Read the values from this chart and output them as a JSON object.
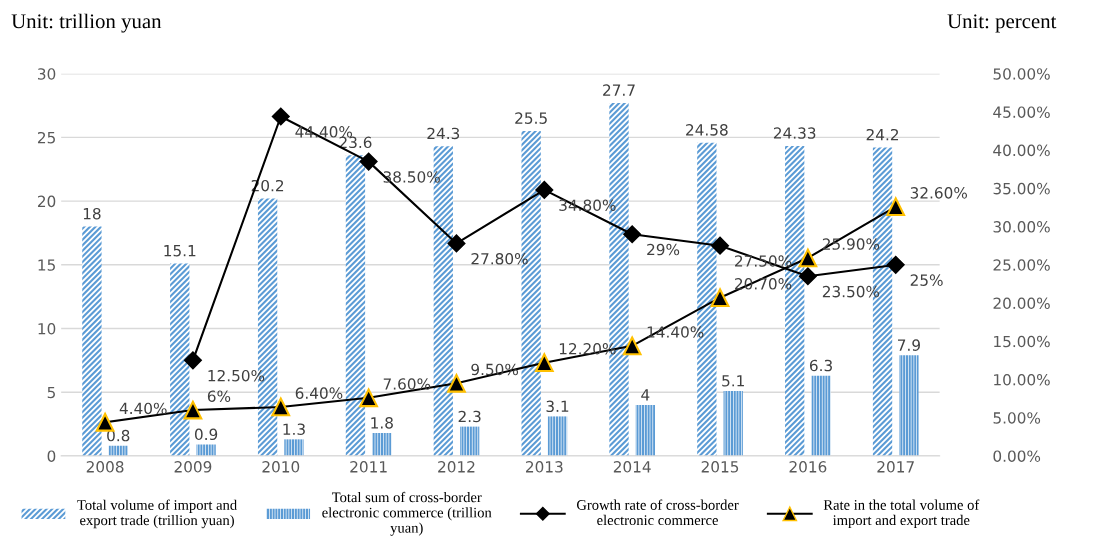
{
  "chart_data": {
    "type": "bar",
    "categories": [
      "2008",
      "2009",
      "2010",
      "2011",
      "2012",
      "2013",
      "2014",
      "2015",
      "2016",
      "2017"
    ],
    "series": [
      {
        "name": "Total volume of import and export trade (trillion yuan)",
        "color": "#5b9bd5",
        "values": [
          18,
          15.1,
          20.2,
          23.6,
          24.3,
          25.5,
          27.7,
          24.58,
          24.33,
          24.2
        ],
        "value_labels": [
          "18",
          "15.1",
          "20.2",
          "23.6",
          "24.3",
          "25.5",
          "27.7",
          "24.58",
          "24.33",
          "24.2"
        ]
      },
      {
        "name": "Total sum of cross-border electronic commerce (trillion yuan)",
        "color": "#5b9bd5",
        "values": [
          0.8,
          0.9,
          1.3,
          1.8,
          2.3,
          3.1,
          4,
          5.1,
          6.3,
          7.9
        ],
        "value_labels": [
          "0.8",
          "0.9",
          "1.3",
          "1.8",
          "2.3",
          "3.1",
          "4",
          "5.1",
          "6.3",
          "7.9"
        ]
      },
      {
        "name": "Growth rate of cross-border electronic commerce",
        "type": "line",
        "axis": "y2",
        "color": "#000000",
        "marker": "diamond",
        "values": [
          null,
          12.5,
          44.4,
          38.5,
          27.8,
          34.8,
          29,
          27.5,
          23.5,
          25
        ],
        "value_labels": [
          null,
          "12.50%",
          "44.40%",
          "38.50%",
          "27.80%",
          "34.80%",
          "29%",
          "27.50%",
          "23.50%",
          "25%"
        ]
      },
      {
        "name": "Rate in the total volume of import and export trade",
        "type": "line",
        "axis": "y2",
        "color": "#000000",
        "marker": "triangle",
        "values": [
          4.4,
          6,
          6.4,
          7.6,
          9.5,
          12.2,
          14.4,
          20.7,
          25.9,
          32.6
        ],
        "value_labels": [
          "4.40%",
          "6%",
          "6.40%",
          "7.60%",
          "9.50%",
          "12.20%",
          "14.40%",
          "20.70%",
          "25.90%",
          "32.60%"
        ]
      }
    ],
    "ylim": [
      0,
      30
    ],
    "yticks": [
      0,
      5,
      10,
      15,
      20,
      25,
      30
    ],
    "y2lim": [
      0,
      50
    ],
    "y2ticks": [
      {
        "value": 0,
        "label": "0.00%"
      },
      {
        "value": 5,
        "label": "5.00%"
      },
      {
        "value": 10,
        "label": "10.00%"
      },
      {
        "value": 15,
        "label": "15.00%"
      },
      {
        "value": 20,
        "label": "20.00%"
      },
      {
        "value": 25,
        "label": "25.00%"
      },
      {
        "value": 30,
        "label": "30.00%"
      },
      {
        "value": 35,
        "label": "35.00%"
      },
      {
        "value": 40,
        "label": "40.00%"
      },
      {
        "value": 45,
        "label": "45.00%"
      },
      {
        "value": 50,
        "label": "50.00%"
      }
    ],
    "grid": "y",
    "legend": "bottom",
    "annotations": [
      "Unit: trillion yuan",
      "Unit: percent"
    ]
  }
}
